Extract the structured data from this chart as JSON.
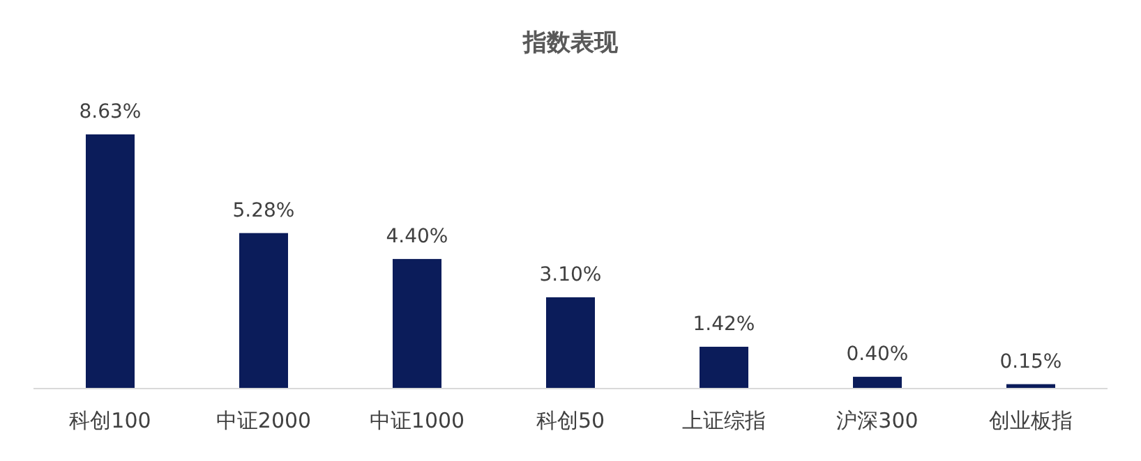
{
  "chart_data": {
    "type": "bar",
    "title": "指数表现",
    "categories": [
      "科创100",
      "中证2000",
      "中证1000",
      "科创50",
      "上证综指",
      "沪深300",
      "创业板指"
    ],
    "series": [
      {
        "color": "#0b1c5a",
        "values": [
          8.63,
          5.28,
          4.4,
          3.1,
          1.42,
          0.4,
          0.15
        ],
        "value_labels": [
          "8.63%",
          "5.28%",
          "4.40%",
          "3.10%",
          "1.42%",
          "0.40%",
          "0.15%"
        ]
      }
    ]
  }
}
